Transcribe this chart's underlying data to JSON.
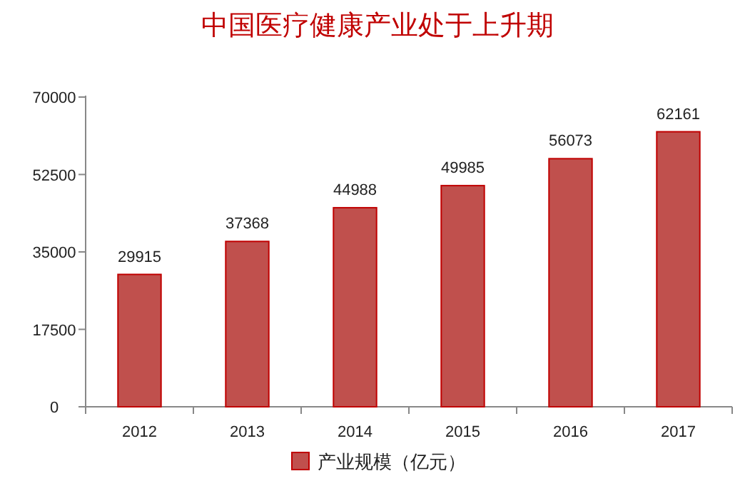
{
  "chart_data": {
    "type": "bar",
    "title": "中国医疗健康产业处于上升期",
    "categories": [
      "2012",
      "2013",
      "2014",
      "2015",
      "2016",
      "2017"
    ],
    "series": [
      {
        "name": "产业规模（亿元）",
        "color": "#c0504d",
        "values": [
          29915,
          37368,
          44988,
          49985,
          56073,
          62161
        ]
      }
    ],
    "ylim": [
      0,
      70000
    ],
    "yticks": [
      0,
      17500,
      35000,
      52500,
      70000
    ],
    "data_labels": true,
    "legend": "bottom"
  }
}
